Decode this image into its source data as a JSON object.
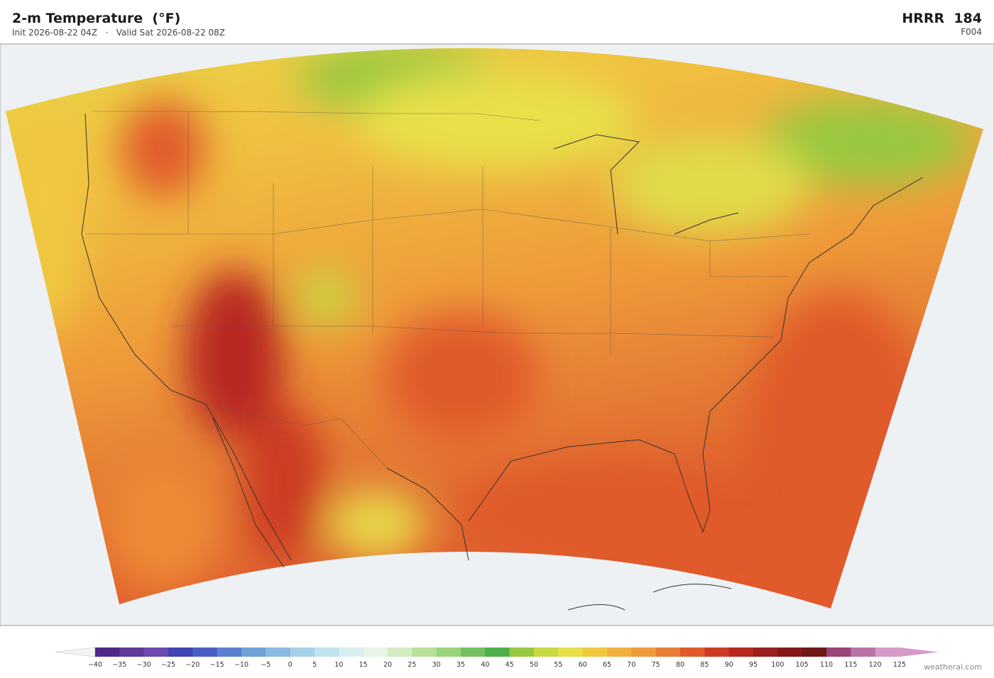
{
  "header": {
    "title": "2-m Temperature  (°F)",
    "subtitle": "Init 2026-08-22 04Z   ·   Valid Sat 2026-08-22 08Z",
    "model": "HRRR  184",
    "forecast_hour": "F004"
  },
  "colorbar": {
    "under_color": "#f4f4f4",
    "over_color": "#d69ac8",
    "colors": [
      "#4b2a8a",
      "#5e3a9a",
      "#6c4ab0",
      "#3f45b5",
      "#4a5fc4",
      "#5b80d0",
      "#72a0d8",
      "#8cb9e0",
      "#a6d0e8",
      "#bfe2ee",
      "#d6eef2",
      "#e6f5e6",
      "#d2ebc0",
      "#b8e09a",
      "#98d47a",
      "#74c060",
      "#4caf48",
      "#98c840",
      "#c8d840",
      "#e8e048",
      "#f0c840",
      "#f0b040",
      "#ee9a3a",
      "#e87c34",
      "#e05a2c",
      "#cc3a24",
      "#b82820",
      "#9c1e1e",
      "#861818",
      "#701818",
      "#9a4478",
      "#b872a8",
      "#d69ac8"
    ],
    "labels": [
      "−40",
      "−35",
      "−30",
      "−25",
      "−20",
      "−15",
      "−10",
      "−5",
      "0",
      "5",
      "10",
      "15",
      "20",
      "25",
      "30",
      "35",
      "40",
      "45",
      "50",
      "55",
      "60",
      "65",
      "70",
      "75",
      "80",
      "85",
      "90",
      "95",
      "100",
      "105",
      "110",
      "115",
      "120",
      "125"
    ]
  },
  "footer": {
    "credit": "weatherai.com"
  }
}
